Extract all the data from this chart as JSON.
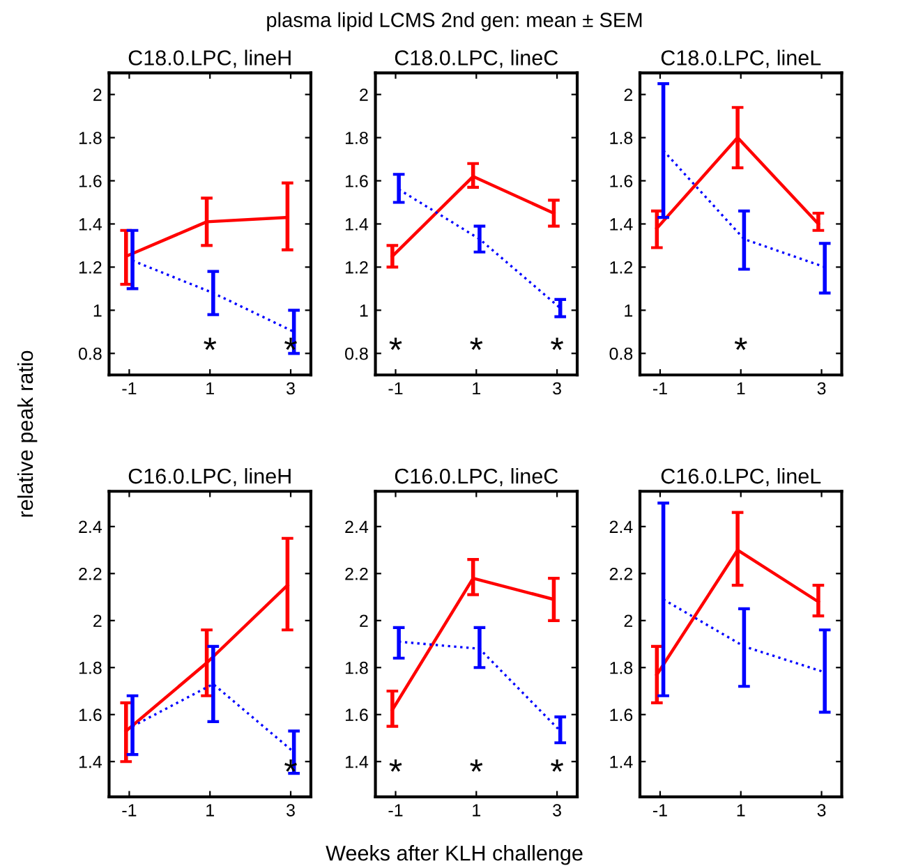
{
  "chart_data": [
    {
      "type": "line",
      "title": "C18.0.LPC, lineH",
      "xlim": [
        -1.5,
        3.5
      ],
      "xticks": [
        -1,
        1,
        3
      ],
      "ylim": [
        0.7,
        2.1
      ],
      "yticks": [
        0.8,
        1,
        1.2,
        1.4,
        1.6,
        1.8,
        2
      ],
      "grid": false,
      "marker": "none",
      "annotations": [
        "*",
        "*"
      ],
      "series": [
        {
          "color": "#ff0000",
          "line_style": "solid",
          "x": [
            -1.08,
            0.92,
            2.92
          ],
          "values": [
            1.25,
            1.41,
            1.43
          ],
          "errors": [
            [
              1.12,
              1.37
            ],
            [
              1.3,
              1.52
            ],
            [
              1.28,
              1.59
            ]
          ]
        },
        {
          "color": "#0000ff",
          "line_style": "dotted",
          "x": [
            -0.92,
            1.08,
            3.08
          ],
          "values": [
            1.23,
            1.08,
            0.9
          ],
          "errors": [
            [
              1.1,
              1.37
            ],
            [
              0.98,
              1.18
            ],
            [
              0.8,
              1.0
            ]
          ]
        }
      ]
    },
    {
      "type": "line",
      "title": "C18.0.LPC, lineC",
      "xlim": [
        -1.5,
        3.5
      ],
      "xticks": [
        -1,
        1,
        3
      ],
      "ylim": [
        0.7,
        2.1
      ],
      "yticks": [
        0.8,
        1,
        1.2,
        1.4,
        1.6,
        1.8,
        2
      ],
      "grid": false,
      "marker": "none",
      "annotations": [
        "plasma lipid LCMS 2nd gen: mean ± SEM",
        "*",
        "*",
        "*"
      ],
      "series": [
        {
          "color": "#ff0000",
          "line_style": "solid",
          "x": [
            -1.08,
            0.92,
            2.92
          ],
          "values": [
            1.25,
            1.62,
            1.45
          ],
          "errors": [
            [
              1.2,
              1.3
            ],
            [
              1.57,
              1.68
            ],
            [
              1.39,
              1.51
            ]
          ]
        },
        {
          "color": "#0000ff",
          "line_style": "dotted",
          "x": [
            -0.92,
            1.08,
            3.08
          ],
          "values": [
            1.56,
            1.33,
            1.01
          ],
          "errors": [
            [
              1.5,
              1.63
            ],
            [
              1.27,
              1.39
            ],
            [
              0.97,
              1.05
            ]
          ]
        }
      ]
    },
    {
      "type": "line",
      "title": "C18.0.LPC, lineL",
      "xlim": [
        -1.5,
        3.5
      ],
      "xticks": [
        -1,
        1,
        3
      ],
      "ylim": [
        0.7,
        2.1
      ],
      "yticks": [
        0.8,
        1,
        1.2,
        1.4,
        1.6,
        1.8,
        2
      ],
      "grid": false,
      "marker": "none",
      "annotations": [
        "*"
      ],
      "series": [
        {
          "color": "#ff0000",
          "line_style": "solid",
          "x": [
            -1.08,
            0.92,
            2.92
          ],
          "values": [
            1.38,
            1.8,
            1.4
          ],
          "errors": [
            [
              1.29,
              1.46
            ],
            [
              1.66,
              1.94
            ],
            [
              1.37,
              1.45
            ]
          ]
        },
        {
          "color": "#0000ff",
          "line_style": "dotted",
          "x": [
            -0.92,
            1.08,
            3.08
          ],
          "values": [
            1.74,
            1.33,
            1.2
          ],
          "errors": [
            [
              1.43,
              2.05
            ],
            [
              1.19,
              1.46
            ],
            [
              1.08,
              1.31
            ]
          ]
        }
      ]
    },
    {
      "type": "line",
      "title": "C16.0.LPC, lineH",
      "ylabel": "relative peak ratio",
      "xlim": [
        -1.5,
        3.5
      ],
      "xticks": [
        -1,
        1,
        3
      ],
      "ylim": [
        1.25,
        2.55
      ],
      "yticks": [
        1.4,
        1.6,
        1.8,
        2,
        2.2,
        2.4
      ],
      "grid": false,
      "marker": "none",
      "annotations": [
        "*"
      ],
      "series": [
        {
          "color": "#ff0000",
          "line_style": "solid",
          "x": [
            -1.08,
            0.92,
            2.92
          ],
          "values": [
            1.53,
            1.82,
            2.15
          ],
          "errors": [
            [
              1.4,
              1.65
            ],
            [
              1.68,
              1.96
            ],
            [
              1.96,
              2.35
            ]
          ]
        },
        {
          "color": "#0000ff",
          "line_style": "dotted",
          "x": [
            -0.92,
            1.08,
            3.08
          ],
          "values": [
            1.55,
            1.73,
            1.44
          ],
          "errors": [
            [
              1.43,
              1.68
            ],
            [
              1.57,
              1.89
            ],
            [
              1.35,
              1.53
            ]
          ]
        }
      ]
    },
    {
      "type": "line",
      "title": "C16.0.LPC, lineC",
      "xlabel": "Weeks after KLH challenge",
      "xlim": [
        -1.5,
        3.5
      ],
      "xticks": [
        -1,
        1,
        3
      ],
      "ylim": [
        1.25,
        2.55
      ],
      "yticks": [
        1.4,
        1.6,
        1.8,
        2,
        2.2,
        2.4
      ],
      "grid": false,
      "marker": "none",
      "annotations": [
        "*",
        "*",
        "*"
      ],
      "series": [
        {
          "color": "#ff0000",
          "line_style": "solid",
          "x": [
            -1.08,
            0.92,
            2.92
          ],
          "values": [
            1.62,
            2.18,
            2.09
          ],
          "errors": [
            [
              1.55,
              1.7
            ],
            [
              2.11,
              2.26
            ],
            [
              2.0,
              2.18
            ]
          ]
        },
        {
          "color": "#0000ff",
          "line_style": "dotted",
          "x": [
            -0.92,
            1.08,
            3.08
          ],
          "values": [
            1.91,
            1.88,
            1.53
          ],
          "errors": [
            [
              1.84,
              1.97
            ],
            [
              1.8,
              1.97
            ],
            [
              1.48,
              1.59
            ]
          ]
        }
      ]
    },
    {
      "type": "line",
      "title": "C16.0.LPC, lineL",
      "xlim": [
        -1.5,
        3.5
      ],
      "xticks": [
        -1,
        1,
        3
      ],
      "ylim": [
        1.25,
        2.55
      ],
      "yticks": [
        1.4,
        1.6,
        1.8,
        2,
        2.2,
        2.4
      ],
      "grid": false,
      "marker": "none",
      "series": [
        {
          "color": "#ff0000",
          "line_style": "solid",
          "x": [
            -1.08,
            0.92,
            2.92
          ],
          "values": [
            1.77,
            2.3,
            2.08
          ],
          "errors": [
            [
              1.65,
              1.89
            ],
            [
              2.15,
              2.46
            ],
            [
              2.02,
              2.15
            ]
          ]
        },
        {
          "color": "#0000ff",
          "line_style": "dotted",
          "x": [
            -0.92,
            1.08,
            3.08
          ],
          "values": [
            2.09,
            1.89,
            1.78
          ],
          "errors": [
            [
              1.68,
              2.5
            ],
            [
              1.72,
              2.05
            ],
            [
              1.61,
              1.96
            ]
          ]
        }
      ]
    }
  ]
}
